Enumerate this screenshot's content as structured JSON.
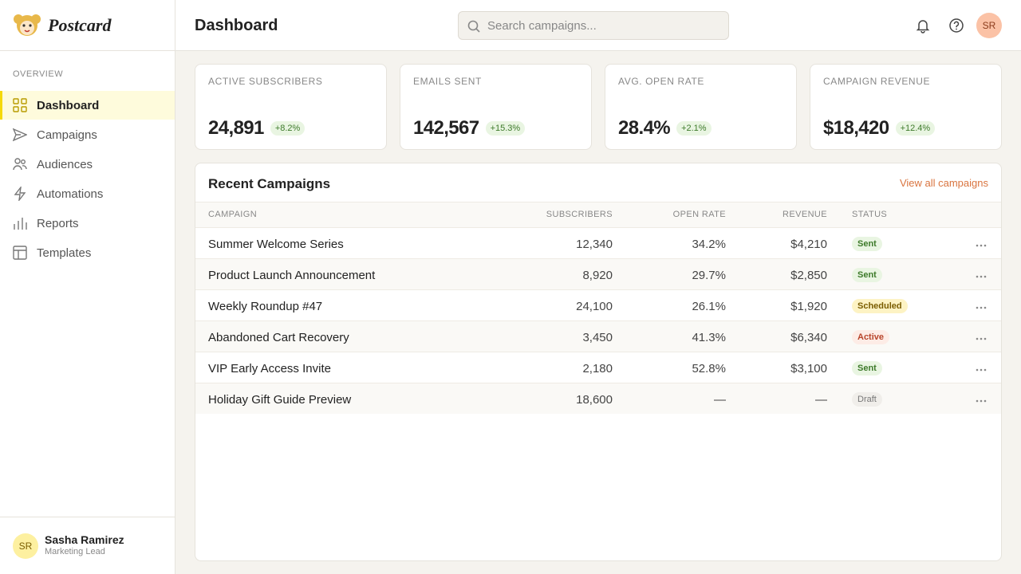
{
  "sidebar": {
    "brand": "Postcard",
    "section": "OVERVIEW",
    "nav": [
      {
        "label": "Dashboard",
        "active": true
      },
      {
        "label": "Campaigns",
        "active": false
      },
      {
        "label": "Audiences",
        "active": false
      },
      {
        "label": "Automations",
        "active": false
      },
      {
        "label": "Reports",
        "active": false
      },
      {
        "label": "Templates",
        "active": false
      }
    ],
    "user": {
      "initials": "SR",
      "name": "Sasha Ramirez",
      "role": "Marketing Lead"
    }
  },
  "header": {
    "title": "Dashboard",
    "search_placeholder": "Search campaigns...",
    "avatar": "SR"
  },
  "stats": [
    {
      "label": "ACTIVE SUBSCRIBERS",
      "value": "24,891",
      "change": "+8.2%"
    },
    {
      "label": "EMAILS SENT",
      "value": "142,567",
      "change": "+15.3%"
    },
    {
      "label": "AVG. OPEN RATE",
      "value": "28.4%",
      "change": "+2.1%"
    },
    {
      "label": "CAMPAIGN REVENUE",
      "value": "$18,420",
      "change": "+12.4%"
    }
  ],
  "table": {
    "title": "Recent Campaigns",
    "link": "View all campaigns",
    "columns": [
      "CAMPAIGN",
      "SUBSCRIBERS",
      "OPEN RATE",
      "REVENUE",
      "STATUS"
    ],
    "rows": [
      {
        "cells": [
          "Summer Welcome Series",
          "12,340",
          "34.2%",
          "$4,210",
          "Sent"
        ],
        "tone": "green"
      },
      {
        "cells": [
          "Product Launch Announcement",
          "8,920",
          "29.7%",
          "$2,850",
          "Sent"
        ],
        "tone": "green"
      },
      {
        "cells": [
          "Weekly Roundup #47",
          "24,100",
          "26.1%",
          "$1,920",
          "Scheduled"
        ],
        "tone": "yellow"
      },
      {
        "cells": [
          "Abandoned Cart Recovery",
          "3,450",
          "41.3%",
          "$6,340",
          "Active"
        ],
        "tone": "red"
      },
      {
        "cells": [
          "VIP Early Access Invite",
          "2,180",
          "52.8%",
          "$3,100",
          "Sent"
        ],
        "tone": "green"
      },
      {
        "cells": [
          "Holiday Gift Guide Preview",
          "18,600",
          "—",
          "—",
          "Draft"
        ],
        "tone": "gray"
      }
    ]
  }
}
